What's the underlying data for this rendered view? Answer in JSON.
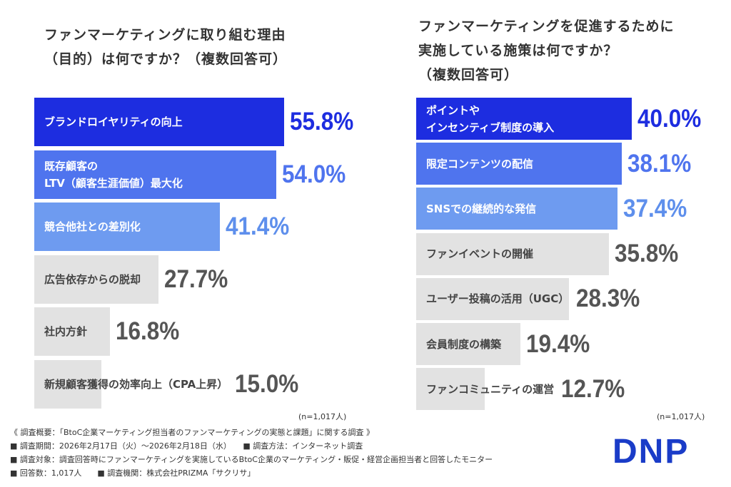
{
  "chart_data": [
    {
      "type": "bar",
      "orientation": "horizontal",
      "title": "ファンマーケティングに取り組む理由\n（目的）は何ですか？（複数回答可）",
      "categories": [
        "ブランドロイヤリティの向上",
        "既存顧客の\nLTV（顧客生涯価値）最大化",
        "競合他社との差別化",
        "広告依存からの脱却",
        "社内方針",
        "新規顧客獲得の効率向上（CPA上昇）"
      ],
      "values": [
        55.8,
        54.0,
        41.4,
        27.7,
        16.8,
        15.0
      ],
      "value_labels": [
        "55.8%",
        "54.0%",
        "41.4%",
        "27.7%",
        "16.8%",
        "15.0%"
      ],
      "colors": [
        "#1d2de0",
        "#4f74ee",
        "#6e9bf0",
        "#e2e2e2",
        "#e2e2e2",
        "#e2e2e2"
      ],
      "value_colors": [
        "#1d2de0",
        "#4f74ee",
        "#5e8fec",
        "#555555",
        "#555555",
        "#555555"
      ],
      "note": "(n=1,017人)"
    },
    {
      "type": "bar",
      "orientation": "horizontal",
      "title": "ファンマーケティングを促進するために\n実施している施策は何ですか？\n（複数回答可）",
      "categories": [
        "ポイントや\nインセンティブ制度の導入",
        "限定コンテンツの配信",
        "SNSでの継続的な発信",
        "ファンイベントの開催",
        "ユーザー投稿の活用（UGC）",
        "会員制度の構築",
        "ファンコミュニティの運営"
      ],
      "values": [
        40.0,
        38.1,
        37.4,
        35.8,
        28.3,
        19.4,
        12.7
      ],
      "value_labels": [
        "40.0%",
        "38.1%",
        "37.4%",
        "35.8%",
        "28.3%",
        "19.4%",
        "12.7%"
      ],
      "colors": [
        "#1d2de0",
        "#4f74ee",
        "#6e9bf0",
        "#e2e2e2",
        "#e2e2e2",
        "#e2e2e2",
        "#e2e2e2"
      ],
      "value_colors": [
        "#1d2de0",
        "#4f74ee",
        "#5e8fec",
        "#555555",
        "#555555",
        "#555555",
        "#555555"
      ],
      "note": "(n=1,017人)"
    }
  ],
  "footer": [
    "《 調査概要：「BtoC企業マーケティング担当者のファンマーケティングの実態と課題」に関する調査 》",
    "■ 調査期間：2026年2月17日（火）〜2026年2月18日（水）　　■ 調査方法：インターネット調査",
    "■ 調査対象：調査回答時にファンマーケティングを実施しているBtoC企業のマーケティング・販促・経営企画担当者と回答したモニター",
    "■ 回答数：1,017人　　■ 調査機関：株式会社PRIZMA「サクリサ」"
  ],
  "logo": "DNP"
}
